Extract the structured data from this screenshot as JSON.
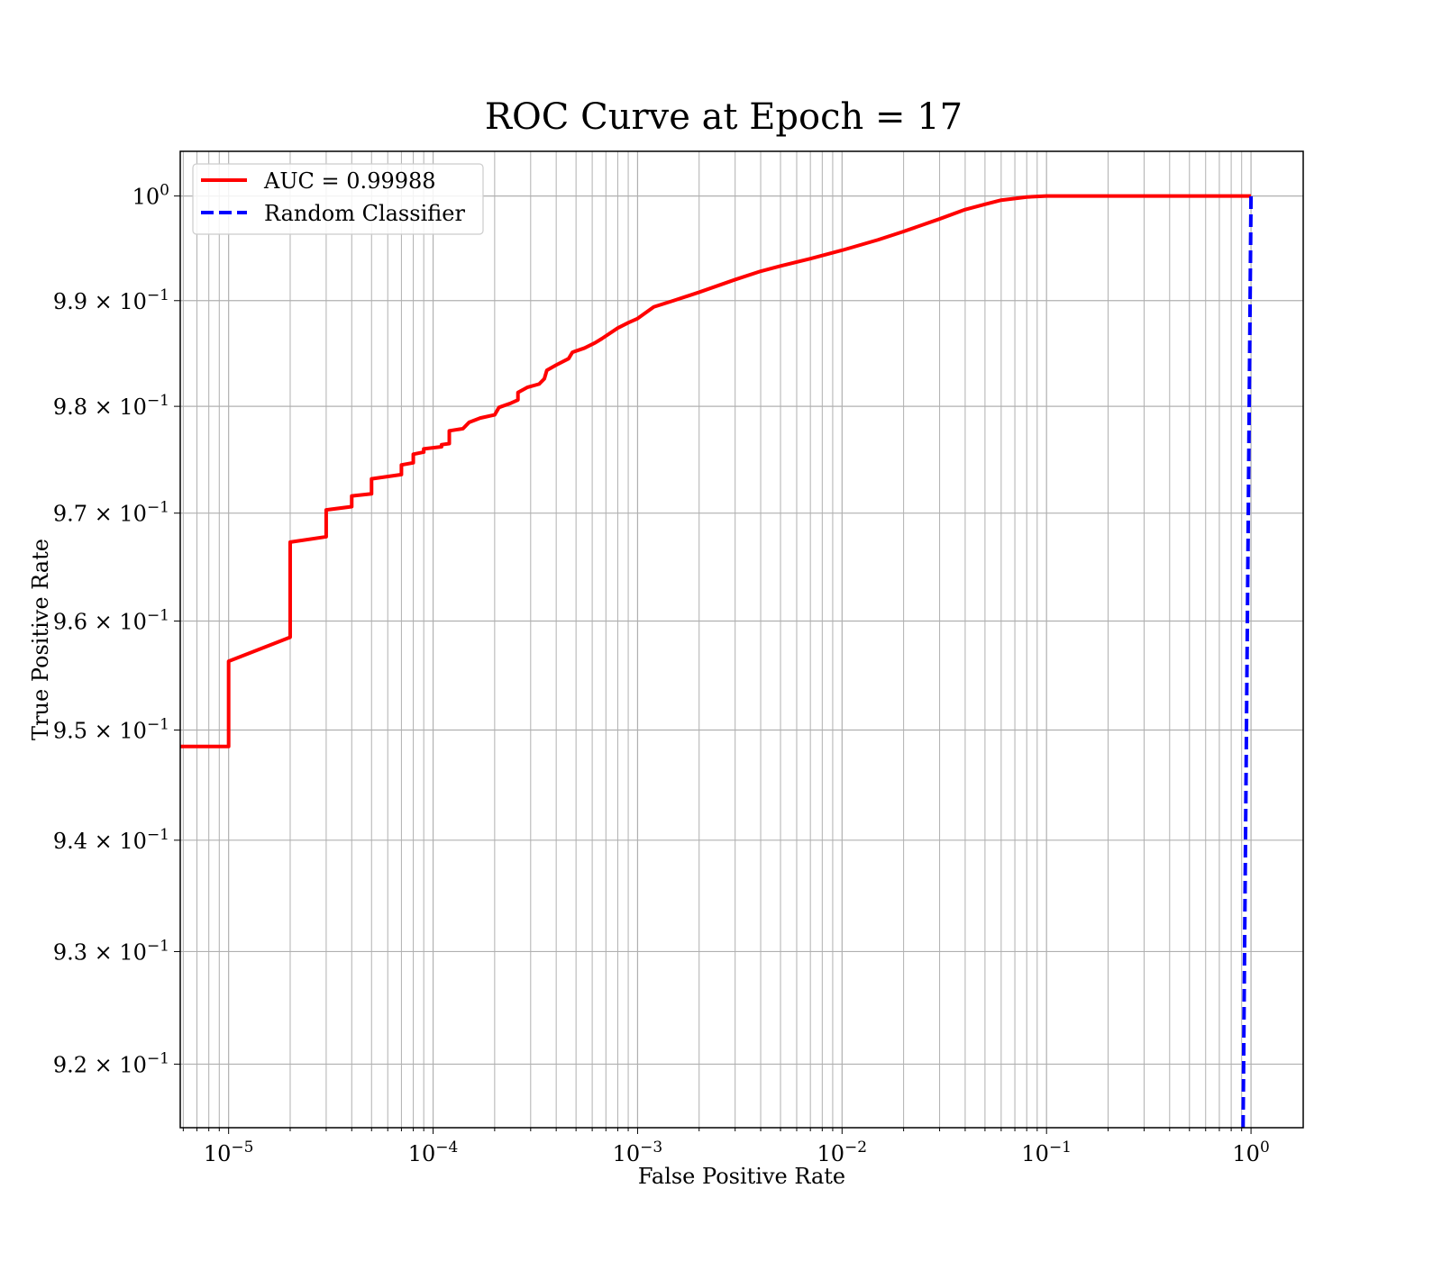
{
  "chart_data": {
    "type": "line",
    "title": "ROC Curve at Epoch = 17",
    "xlabel": "False Positive Rate",
    "ylabel": "True Positive Rate",
    "xscale": "log",
    "yscale": "log",
    "xlim": [
      5.8e-06,
      1.8
    ],
    "ylim": [
      0.9144,
      1.0043
    ],
    "grid": true,
    "legend_location": "upper-left",
    "x_ticks": [
      {
        "value": 1e-05,
        "base": "10",
        "exp": "−5"
      },
      {
        "value": 0.0001,
        "base": "10",
        "exp": "−4"
      },
      {
        "value": 0.001,
        "base": "10",
        "exp": "−3"
      },
      {
        "value": 0.01,
        "base": "10",
        "exp": "−2"
      },
      {
        "value": 0.1,
        "base": "10",
        "exp": "−1"
      },
      {
        "value": 1,
        "base": "10",
        "exp": "0"
      }
    ],
    "y_ticks": [
      {
        "value": 1.0,
        "base": "10",
        "exp": "0"
      },
      {
        "value": 0.99,
        "base": "9.9 × 10",
        "exp": "−1"
      },
      {
        "value": 0.98,
        "base": "9.8 × 10",
        "exp": "−1"
      },
      {
        "value": 0.97,
        "base": "9.7 × 10",
        "exp": "−1"
      },
      {
        "value": 0.96,
        "base": "9.6 × 10",
        "exp": "−1"
      },
      {
        "value": 0.95,
        "base": "9.5 × 10",
        "exp": "−1"
      },
      {
        "value": 0.94,
        "base": "9.4 × 10",
        "exp": "−1"
      },
      {
        "value": 0.93,
        "base": "9.3 × 10",
        "exp": "−1"
      },
      {
        "value": 0.92,
        "base": "9.2 × 10",
        "exp": "−1"
      }
    ],
    "series": [
      {
        "name": "AUC = 0.99988",
        "color": "#ff0000",
        "style": "solid",
        "points": [
          [
            5.8e-06,
            0.9485
          ],
          [
            1e-05,
            0.9485
          ],
          [
            1e-05,
            0.9563
          ],
          [
            2e-05,
            0.9585
          ],
          [
            2e-05,
            0.9673
          ],
          [
            3e-05,
            0.9678
          ],
          [
            3e-05,
            0.9703
          ],
          [
            4e-05,
            0.9706
          ],
          [
            4e-05,
            0.9716
          ],
          [
            5e-05,
            0.9718
          ],
          [
            5e-05,
            0.9732
          ],
          [
            7e-05,
            0.9736
          ],
          [
            7e-05,
            0.9745
          ],
          [
            8e-05,
            0.9747
          ],
          [
            8e-05,
            0.9755
          ],
          [
            9e-05,
            0.9757
          ],
          [
            9e-05,
            0.976
          ],
          [
            0.00011,
            0.9762
          ],
          [
            0.00011,
            0.9764
          ],
          [
            0.00012,
            0.9765
          ],
          [
            0.00012,
            0.9777
          ],
          [
            0.00014,
            0.9779
          ],
          [
            0.00015,
            0.9785
          ],
          [
            0.00017,
            0.9789
          ],
          [
            0.0002,
            0.9792
          ],
          [
            0.00021,
            0.9799
          ],
          [
            0.00024,
            0.9803
          ],
          [
            0.00026,
            0.9806
          ],
          [
            0.00026,
            0.9813
          ],
          [
            0.00029,
            0.9818
          ],
          [
            0.00033,
            0.9821
          ],
          [
            0.00035,
            0.9826
          ],
          [
            0.00036,
            0.9834
          ],
          [
            0.0004,
            0.9839
          ],
          [
            0.00046,
            0.9845
          ],
          [
            0.00048,
            0.9851
          ],
          [
            0.00055,
            0.9855
          ],
          [
            0.00062,
            0.986
          ],
          [
            0.00067,
            0.9864
          ],
          [
            0.0008,
            0.9874
          ],
          [
            0.0009,
            0.9879
          ],
          [
            0.001,
            0.9883
          ],
          [
            0.0012,
            0.9894
          ],
          [
            0.0015,
            0.99
          ],
          [
            0.002,
            0.9908
          ],
          [
            0.003,
            0.992
          ],
          [
            0.004,
            0.9928
          ],
          [
            0.005,
            0.9933
          ],
          [
            0.007,
            0.994
          ],
          [
            0.01,
            0.9948
          ],
          [
            0.015,
            0.9958
          ],
          [
            0.02,
            0.9966
          ],
          [
            0.03,
            0.9978
          ],
          [
            0.04,
            0.9987
          ],
          [
            0.05,
            0.9992
          ],
          [
            0.06,
            0.9996
          ],
          [
            0.08,
            0.9999
          ],
          [
            0.1,
            1.0
          ],
          [
            0.3,
            1.0
          ],
          [
            1.0,
            1.0
          ]
        ]
      },
      {
        "name": "Random Classifier",
        "color": "#0000ff",
        "style": "dashed",
        "points": [
          [
            0.9144,
            0.9144
          ],
          [
            1.0,
            1.0
          ]
        ]
      }
    ]
  }
}
